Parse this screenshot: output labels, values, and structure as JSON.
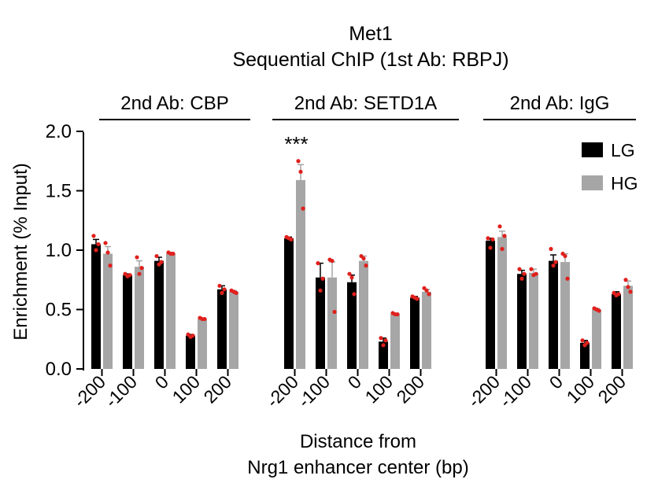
{
  "chart_data": {
    "type": "bar",
    "title": "Met1",
    "subtitle": "Sequential ChIP (1st Ab: RBPJ)",
    "xlabel": [
      "Distance from",
      "Nrg1 enhancer center  (bp)"
    ],
    "ylabel": "Enrichment  (% Input)",
    "ylim": [
      0,
      2.0
    ],
    "yticks": [
      "0.0",
      "0.5",
      "1.0",
      "1.5",
      "2.0"
    ],
    "grid": false,
    "legend_position": "top-right",
    "categories": [
      "-200",
      "-100",
      "0",
      "100",
      "200"
    ],
    "series_colors": {
      "LG": "#000000",
      "HG": "#a6a6a6"
    },
    "point_color": "#e0201c",
    "groups": [
      {
        "label": "2nd Ab: CBP",
        "series": [
          {
            "name": "LG",
            "values": [
              1.05,
              0.79,
              0.91,
              0.28,
              0.67
            ],
            "errors": [
              0.04,
              0.01,
              0.03,
              0.01,
              0.03
            ],
            "points": [
              [
                1.12,
                1.0,
                1.05
              ],
              [
                0.8,
                0.78,
                0.79
              ],
              [
                0.95,
                0.88,
                0.9
              ],
              [
                0.29,
                0.27,
                0.28
              ],
              [
                0.7,
                0.64,
                0.67
              ]
            ]
          },
          {
            "name": "HG",
            "values": [
              0.97,
              0.86,
              0.97,
              0.42,
              0.65
            ],
            "errors": [
              0.06,
              0.05,
              0.01,
              0.01,
              0.01
            ],
            "points": [
              [
                1.06,
                0.98,
                0.87
              ],
              [
                0.94,
                0.8,
                0.85
              ],
              [
                0.98,
                0.97,
                0.97
              ],
              [
                0.43,
                0.42,
                0.42
              ],
              [
                0.66,
                0.65,
                0.64
              ]
            ]
          }
        ],
        "annotations": []
      },
      {
        "label": "2nd Ab: SETD1A",
        "series": [
          {
            "name": "LG",
            "values": [
              1.1,
              0.77,
              0.73,
              0.23,
              0.6
            ],
            "errors": [
              0.01,
              0.12,
              0.06,
              0.03,
              0.01
            ],
            "points": [
              [
                1.11,
                1.1,
                1.09
              ],
              [
                0.89,
                0.66,
                0.76
              ],
              [
                0.8,
                0.77,
                0.63
              ],
              [
                0.26,
                0.2,
                0.24
              ],
              [
                0.61,
                0.6,
                0.59
              ]
            ]
          },
          {
            "name": "HG",
            "values": [
              1.59,
              0.77,
              0.91,
              0.46,
              0.65
            ],
            "errors": [
              0.13,
              0.13,
              0.04,
              0.01,
              0.02
            ],
            "points": [
              [
                1.75,
                1.66,
                1.35
              ],
              [
                0.92,
                0.91,
                0.48
              ],
              [
                0.95,
                0.93,
                0.87
              ],
              [
                0.47,
                0.46,
                0.46
              ],
              [
                0.68,
                0.66,
                0.63
              ]
            ]
          }
        ],
        "annotations": [
          {
            "text": "***",
            "category": "-200"
          }
        ]
      },
      {
        "label": "2nd Ab: IgG",
        "series": [
          {
            "name": "LG",
            "values": [
              1.08,
              0.8,
              0.91,
              0.22,
              0.63
            ],
            "errors": [
              0.02,
              0.03,
              0.05,
              0.02,
              0.02
            ],
            "points": [
              [
                1.1,
                1.02,
                1.09
              ],
              [
                0.84,
                0.76,
                0.8
              ],
              [
                1.01,
                0.87,
                0.9
              ],
              [
                0.24,
                0.2,
                0.22
              ],
              [
                0.64,
                0.62,
                0.63
              ]
            ]
          },
          {
            "name": "HG",
            "values": [
              1.11,
              0.81,
              0.9,
              0.5,
              0.7
            ],
            "errors": [
              0.05,
              0.03,
              0.07,
              0.01,
              0.04
            ],
            "points": [
              [
                1.2,
                1.01,
                1.12
              ],
              [
                0.84,
                0.79,
                0.8
              ],
              [
                0.97,
                0.95,
                0.76
              ],
              [
                0.51,
                0.5,
                0.49
              ],
              [
                0.75,
                0.69,
                0.65
              ]
            ]
          }
        ],
        "annotations": []
      }
    ]
  }
}
